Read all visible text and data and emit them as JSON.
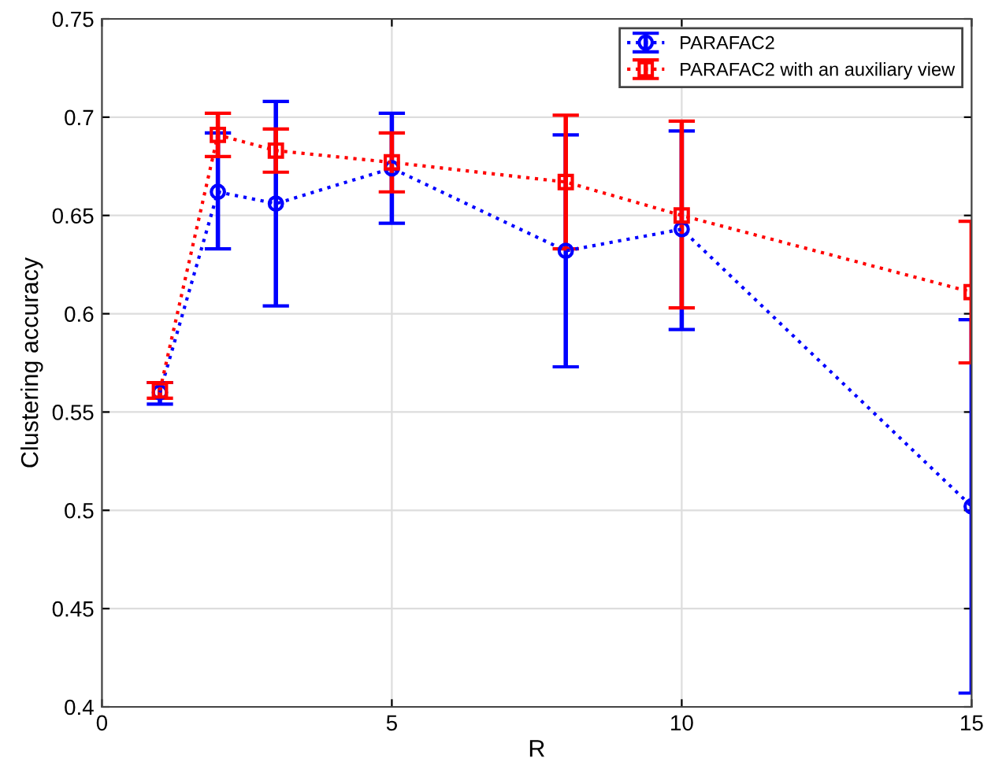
{
  "chart_data": {
    "type": "line",
    "xlabel": "R",
    "ylabel": "Clustering accuracy",
    "x": [
      1,
      2,
      3,
      5,
      8,
      10,
      15
    ],
    "series": [
      {
        "name": "PARAFAC2",
        "color": "#0000ff",
        "marker": "circle",
        "values": [
          0.56,
          0.662,
          0.656,
          0.674,
          0.632,
          0.643,
          0.502
        ],
        "errors": [
          [
            0.554,
            0.565
          ],
          [
            0.633,
            0.692
          ],
          [
            0.604,
            0.708
          ],
          [
            0.646,
            0.702
          ],
          [
            0.573,
            0.691
          ],
          [
            0.592,
            0.693
          ],
          [
            0.407,
            0.597
          ]
        ]
      },
      {
        "name": "PARAFAC2 with an auxiliary view",
        "color": "#ff0000",
        "marker": "square",
        "values": [
          0.561,
          0.691,
          0.683,
          0.677,
          0.667,
          0.65,
          0.611
        ],
        "errors": [
          [
            0.557,
            0.565
          ],
          [
            0.68,
            0.702
          ],
          [
            0.672,
            0.694
          ],
          [
            0.662,
            0.692
          ],
          [
            0.633,
            0.701
          ],
          [
            0.603,
            0.698
          ],
          [
            0.575,
            0.647
          ]
        ]
      }
    ],
    "line_style": "dotted",
    "xlim": [
      0,
      15
    ],
    "xticks": [
      0,
      5,
      10,
      15
    ],
    "ylim": [
      0.4,
      0.75
    ],
    "yticks": [
      0.4,
      0.45,
      0.5,
      0.55,
      0.6,
      0.65,
      0.7,
      0.75
    ],
    "grid": true,
    "legend": "top right"
  }
}
